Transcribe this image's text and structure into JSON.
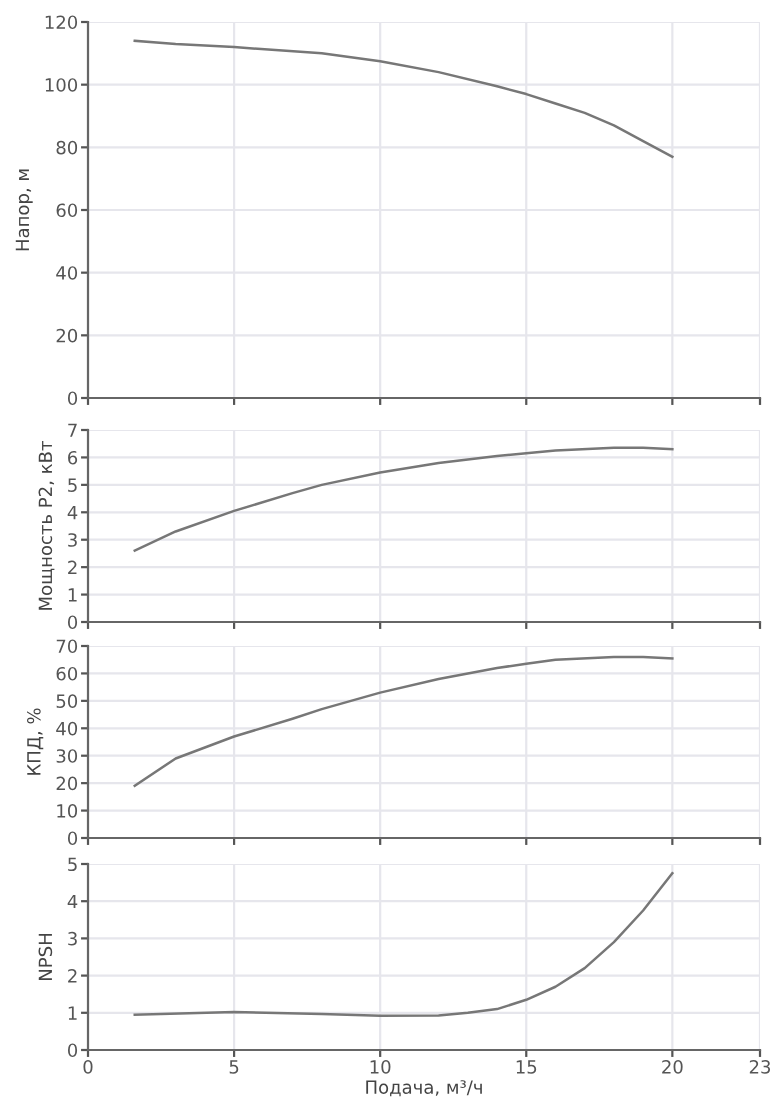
{
  "chart_data": [
    {
      "type": "line",
      "ylabel": "Напор, м",
      "xlim": [
        0,
        23
      ],
      "xticks": [
        0,
        5,
        10,
        15,
        20,
        23
      ],
      "ylim": [
        0,
        120
      ],
      "yticks": [
        0,
        20,
        40,
        60,
        80,
        100,
        120
      ],
      "grid": true,
      "tick_labels": "y",
      "series": [
        {
          "color": "#777777",
          "x": [
            1.6,
            3,
            5,
            8,
            10,
            12,
            14,
            15,
            16,
            17,
            18,
            19,
            20
          ],
          "values": [
            114,
            113,
            112,
            110,
            107.5,
            104,
            99.5,
            97,
            94,
            91,
            87,
            82,
            77
          ]
        }
      ]
    },
    {
      "type": "line",
      "ylabel": "Мощность Р2, кВт",
      "xlim": [
        0,
        23
      ],
      "xticks": [
        0,
        5,
        10,
        15,
        20,
        23
      ],
      "ylim": [
        0,
        7
      ],
      "yticks": [
        0,
        1,
        2,
        3,
        4,
        5,
        6,
        7
      ],
      "grid": true,
      "tick_labels": "y",
      "series": [
        {
          "color": "#777777",
          "x": [
            1.6,
            3,
            5,
            7,
            8,
            10,
            12,
            14,
            15,
            16,
            18,
            19,
            20
          ],
          "values": [
            2.6,
            3.3,
            4.05,
            4.7,
            5.0,
            5.45,
            5.8,
            6.05,
            6.15,
            6.25,
            6.35,
            6.35,
            6.3
          ]
        }
      ]
    },
    {
      "type": "line",
      "ylabel": "КПД, %",
      "xlim": [
        0,
        23
      ],
      "xticks": [
        0,
        5,
        10,
        15,
        20,
        23
      ],
      "ylim": [
        0,
        70
      ],
      "yticks": [
        0,
        10,
        20,
        30,
        40,
        50,
        60,
        70
      ],
      "grid": true,
      "tick_labels": "y",
      "series": [
        {
          "color": "#777777",
          "x": [
            1.6,
            3,
            5,
            7,
            8,
            10,
            12,
            14,
            15,
            16,
            18,
            19,
            20
          ],
          "values": [
            19,
            29,
            37,
            43.5,
            47,
            53,
            58,
            62,
            63.5,
            65,
            66,
            66,
            65.5
          ]
        }
      ]
    },
    {
      "type": "line",
      "ylabel": "NPSH",
      "xlabel": "Подача, м³/ч",
      "xlim": [
        0,
        23
      ],
      "xticks": [
        0,
        5,
        10,
        15,
        20,
        23
      ],
      "ylim": [
        0,
        5
      ],
      "yticks": [
        0,
        1,
        2,
        3,
        4,
        5
      ],
      "grid": true,
      "series": [
        {
          "color": "#777777",
          "x": [
            1.6,
            5,
            8,
            10,
            12,
            13,
            14,
            15,
            16,
            17,
            18,
            19,
            20
          ],
          "values": [
            0.95,
            1.02,
            0.97,
            0.92,
            0.93,
            1.0,
            1.1,
            1.35,
            1.7,
            2.2,
            2.9,
            3.75,
            4.75
          ]
        }
      ]
    }
  ]
}
